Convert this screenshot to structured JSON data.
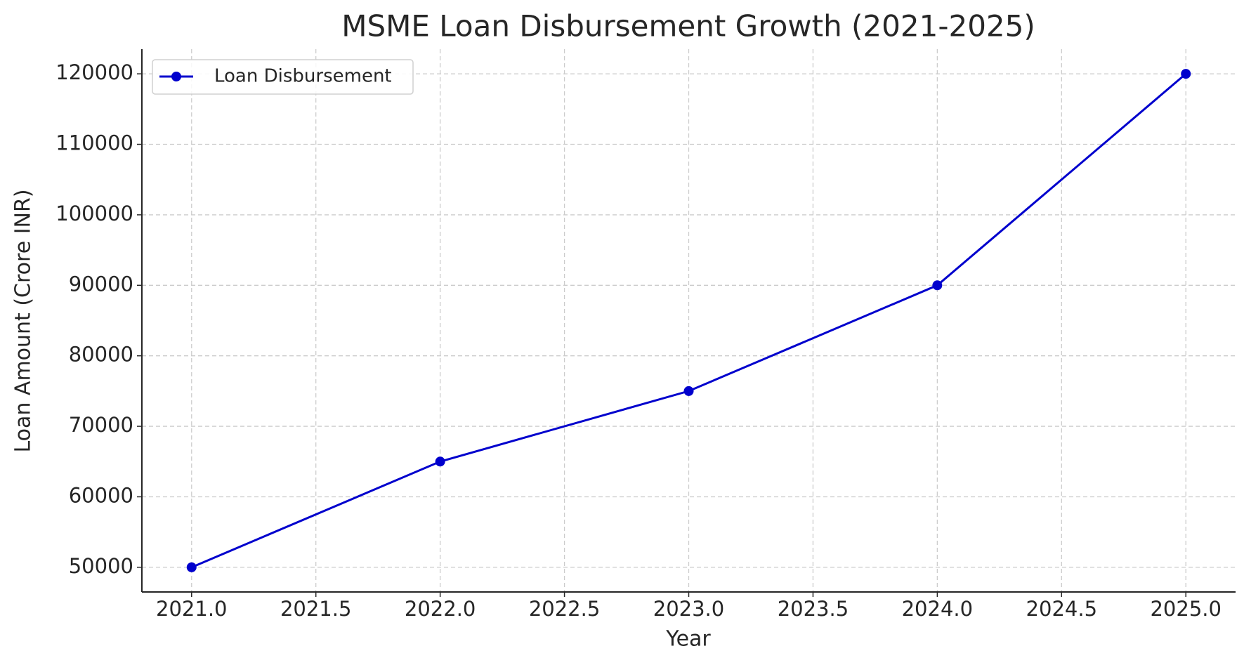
{
  "chart_data": {
    "type": "line",
    "title": "MSME Loan Disbursement Growth (2021-2025)",
    "x_label": "Year",
    "y_label": "Loan Amount (Crore INR)",
    "x": [
      2021,
      2022,
      2023,
      2024,
      2025
    ],
    "series": [
      {
        "name": "Loan Disbursement",
        "color": "#0000cd",
        "values": [
          50000,
          65000,
          75000,
          90000,
          120000
        ]
      }
    ],
    "xlim": [
      2020.8,
      2025.2
    ],
    "xticks": [
      {
        "value": 2021,
        "label": "2021.0"
      },
      2021.5,
      {
        "value": 2022,
        "label": "2022.0"
      },
      2022.5,
      {
        "value": 2023,
        "label": "2023.0"
      },
      2023.5,
      {
        "value": 2024,
        "label": "2024.0"
      },
      2024.5,
      {
        "value": 2025,
        "label": "2025.0"
      }
    ],
    "ylim": [
      46500,
      123500
    ],
    "yticks": [
      50000,
      60000,
      70000,
      80000,
      90000,
      100000,
      110000,
      120000
    ],
    "grid": true,
    "legend": "upper left"
  }
}
